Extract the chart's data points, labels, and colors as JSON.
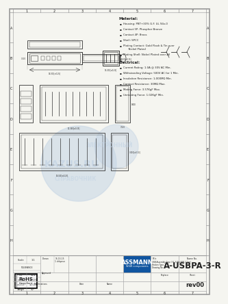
{
  "title": "A-USBPA-3-R",
  "rev": "rev00",
  "bg_color": "#f5f5f0",
  "border_color": "#999999",
  "inner_border_color": "#aaaaaa",
  "text_color": "#222222",
  "draw_color": "#333333",
  "material_title": "Material:",
  "material_items": [
    "Housing: PBT+30% G.F. UL 94v-0",
    "Contact 5P: Phosphor Bronze",
    "Contact 4P: Brass",
    "Shell: SPCC",
    "Plating Contact: Gold Flash & Tin over\n      Nickel Plated",
    "Plating Shell: Nickel Plated over All"
  ],
  "electrical_title": "Electrical:",
  "electrical_items": [
    "Current Rating: 1.0A @ 30V AC Min.",
    "Withstanding Voltage: 500V AC for 1 Min.",
    "Insulation Resistance: 1,000MΩ Min.",
    "Contact Resistance: 30MΩ Max.",
    "Mating Force: 3.57KgF Max.",
    "Unmating Force: 1.02KgF Min."
  ],
  "col_numbers": [
    "1",
    "2",
    "3",
    "4",
    "5",
    "6",
    "7"
  ],
  "row_letters": [
    "A",
    "B",
    "C",
    "D",
    "E",
    "F",
    "G",
    "H"
  ],
  "assmann_color": "#1055a0",
  "assmann_bg": "#1055a0",
  "rohs_border": "#000000",
  "watermark_color": "#c5d5e5",
  "scale_label": "Scale",
  "scale_value": "1:1",
  "tolerance_rows": [
    [
      "±.1",
      "±0.4"
    ],
    [
      "±.005",
      "±0.125"
    ],
    [
      "±.0005",
      "±0.013"
    ],
    [
      "±Angle",
      "±0°"
    ]
  ],
  "title_block_labels": [
    "Modifications",
    "Date",
    "Name"
  ],
  "name_no_label": "Name No.",
  "replace_label": "Replace",
  "sheet_label": "Sheet",
  "title_desc": "USB Assembly Type 3.0, 9-Pin A/M, 1.5m/\nBroken Type,\nDrawing No.",
  "drawn_label": "Drawn",
  "approved_label": "Approved",
  "date_val": "15.15.15",
  "chkd_label": "1 chkprsn"
}
